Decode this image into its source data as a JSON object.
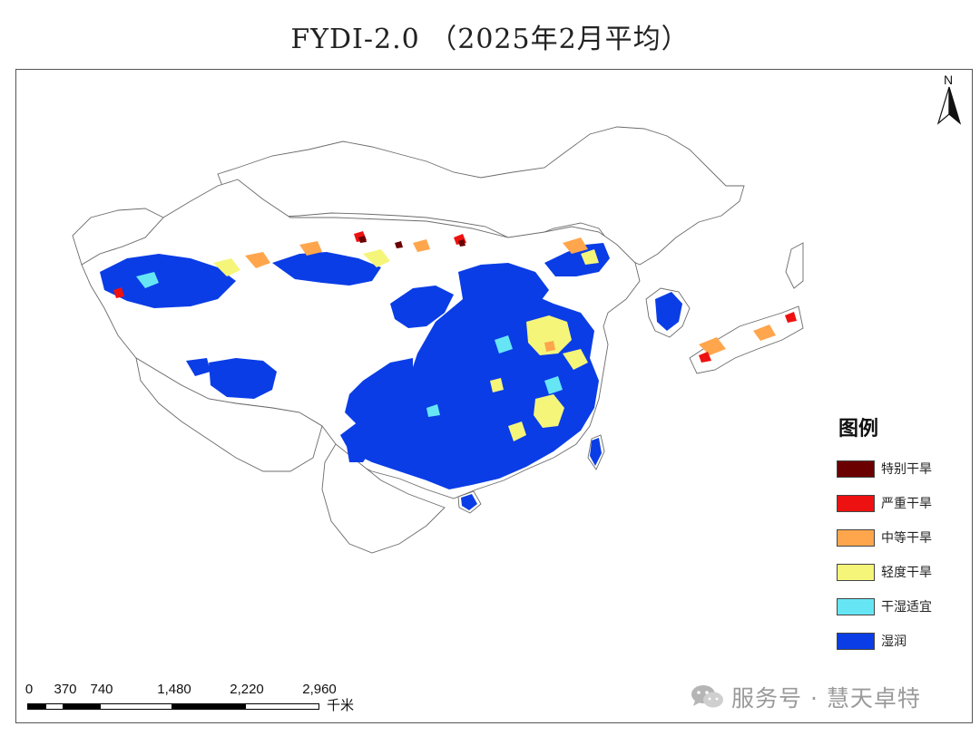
{
  "title": "FYDI-2.0 （2025年2月平均）",
  "north_arrow": {
    "label": "N"
  },
  "legend": {
    "title": "图例",
    "items": [
      {
        "label": "特别干旱",
        "color": "#6b0000"
      },
      {
        "label": "严重干旱",
        "color": "#ee1111"
      },
      {
        "label": "中等干旱",
        "color": "#ffa64d"
      },
      {
        "label": "轻度干旱",
        "color": "#f5f57a"
      },
      {
        "label": "干湿适宜",
        "color": "#66e6f5"
      },
      {
        "label": "湿润",
        "color": "#0a3de6"
      }
    ]
  },
  "scale_bar": {
    "ticks": [
      "0",
      "370",
      "740",
      "1,480",
      "2,220",
      "2,960"
    ],
    "unit": "千米"
  },
  "watermark": {
    "text": "服务号 · 慧天卓特",
    "icon": "wechat-icon"
  },
  "colors": {
    "wet": "#0a3de6",
    "suitable": "#66e6f5",
    "light": "#f5f57a",
    "moderate": "#ffa64d",
    "severe": "#ee1111",
    "extreme": "#6b0000",
    "border": "#666666"
  }
}
